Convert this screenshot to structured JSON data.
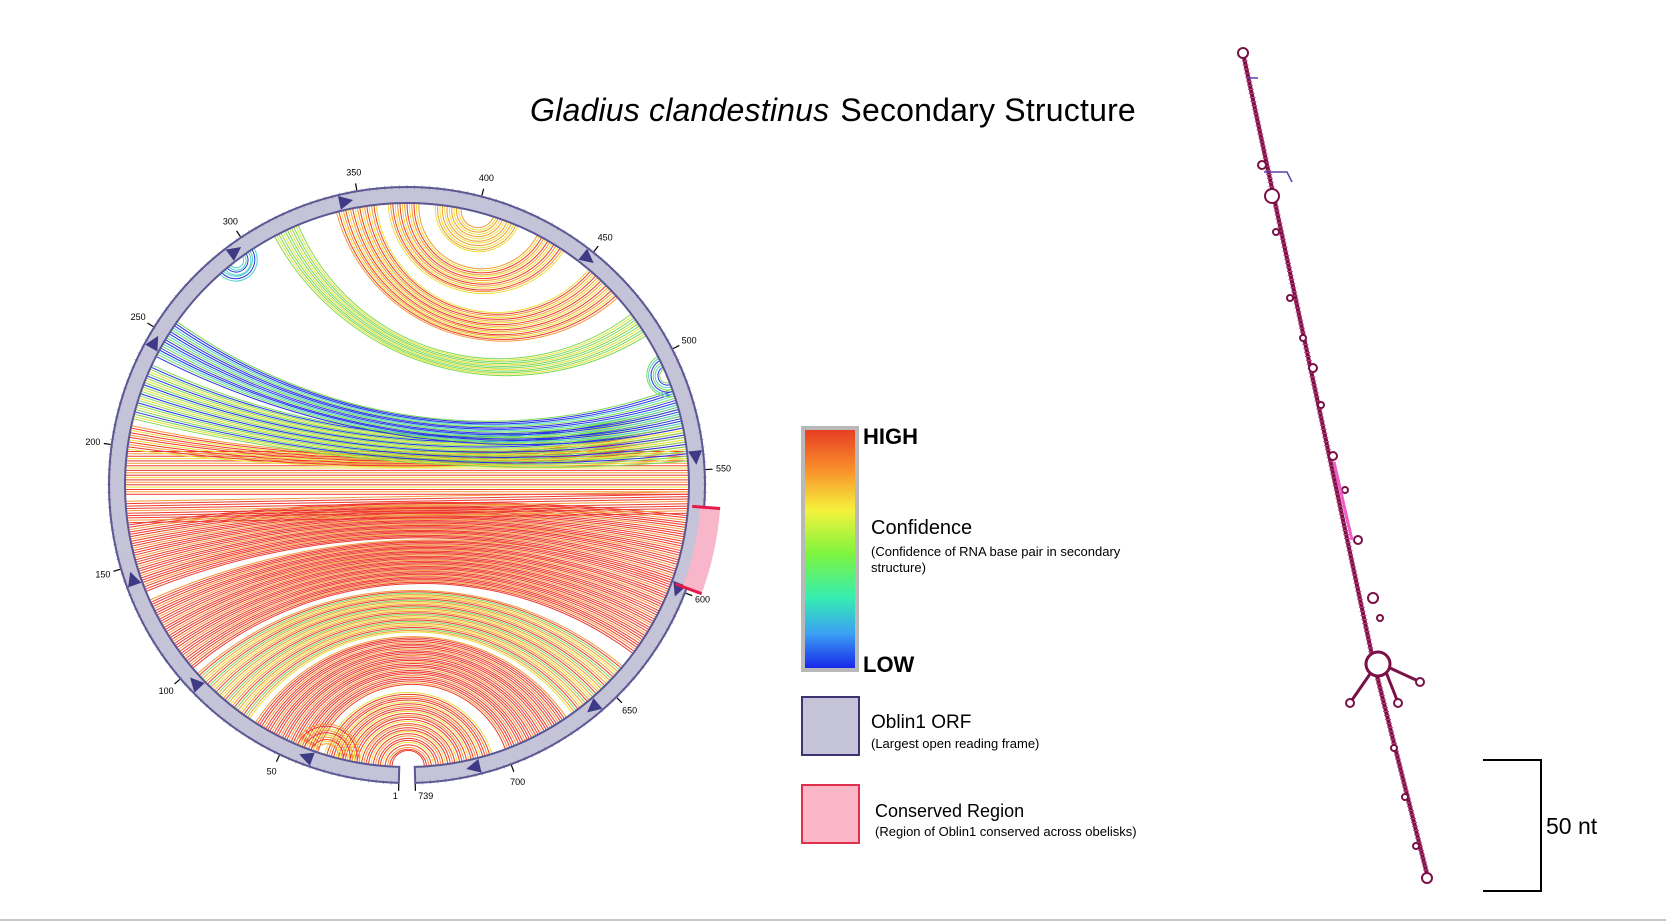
{
  "title": {
    "species": "Gladius clandestinus",
    "text": "Secondary Structure"
  },
  "circle_plot": {
    "position_labels": [
      "1",
      "50",
      "100",
      "150",
      "200",
      "250",
      "300",
      "350",
      "400",
      "450",
      "500",
      "550",
      "600",
      "650",
      "700",
      "739"
    ],
    "sequence_length": 739,
    "colors": {
      "ring_fill": "#c5c3d7",
      "ring_stroke": "#5b5794",
      "conserved_fill": "#f7b6c9",
      "conserved_stroke": "#e6194b",
      "arrow": "#3f3a85"
    }
  },
  "legend": {
    "high_label": "HIGH",
    "low_label": "LOW",
    "confidence_title": "Confidence",
    "confidence_caption": "(Confidence of RNA base pair in secondary structure)",
    "orf_title": "Oblin1 ORF",
    "orf_caption": "(Largest open reading frame)",
    "conserved_title": "Conserved Region",
    "conserved_caption": "(Region of Oblin1 conserved across obelisks)",
    "gradient_colors": [
      "#e53b24",
      "#f98e2a",
      "#f5f23c",
      "#7ef43f",
      "#35eeb0",
      "#3aa0f4",
      "#1621e8"
    ],
    "orf_swatch": {
      "fill": "#c5c3d7",
      "stroke": "#3d3373"
    },
    "conserved_swatch": {
      "fill": "#fbb6c8",
      "stroke": "#e0304d"
    }
  },
  "scale_bar": {
    "label": "50 nt"
  }
}
